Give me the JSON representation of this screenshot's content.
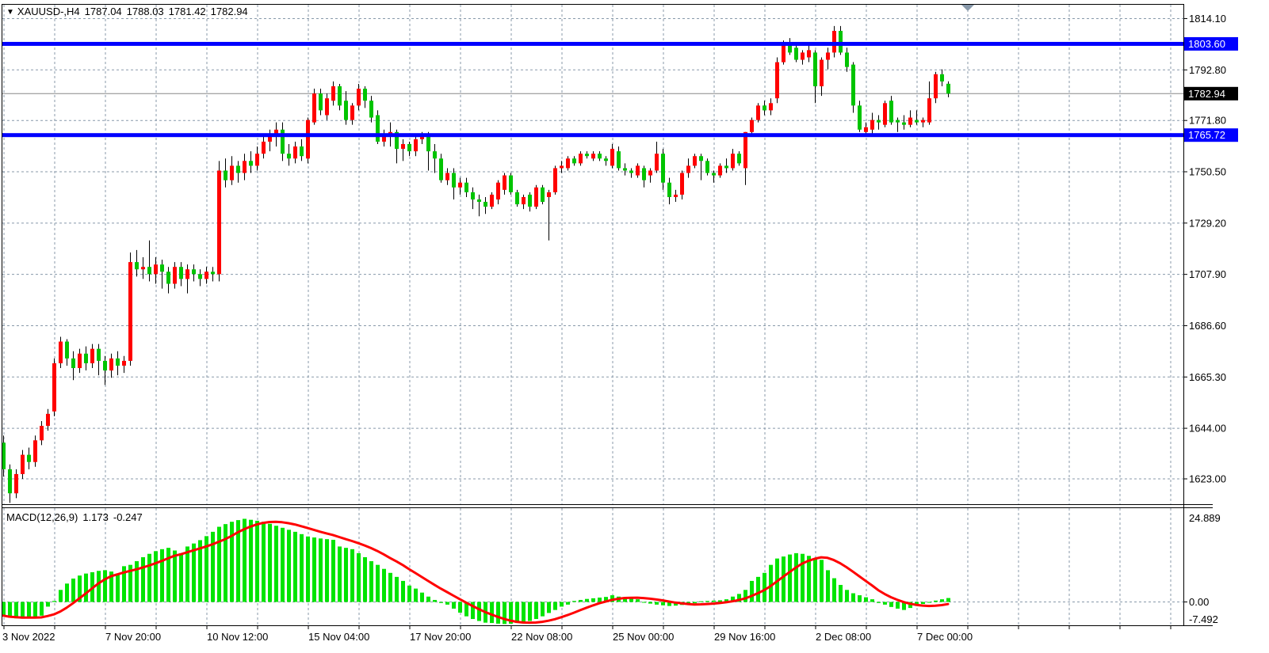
{
  "header": {
    "symbol_period": "XAUUSD-,H4",
    "open": "1787.04",
    "high": "1788.03",
    "low": "1781.42",
    "close": "1782.94"
  },
  "indicator_label": {
    "name": "MACD(12,26,9)",
    "macd_value": "1.173",
    "signal_value": "-0.247"
  },
  "price_axis": {
    "tags": [
      {
        "text": "1803.60",
        "bg": "#0000FF",
        "price": 1803.6
      },
      {
        "text": "1782.94",
        "bg": "#000000",
        "price": 1782.94
      },
      {
        "text": "1765.72",
        "bg": "#0000FF",
        "price": 1765.72
      }
    ]
  },
  "macd_axis": {
    "top": "24.889",
    "zero": "0.00",
    "bottom": "-7.492"
  },
  "colors": {
    "up": "#FF0000",
    "down": "#00C400",
    "wick": "#000000",
    "macd_bar": "#00E400",
    "signal": "#FF0000",
    "grid": "#8899AA",
    "bid_line": "#888888",
    "level_line": "#0000FF",
    "frame": "#000000",
    "marker": "#8899AA"
  },
  "chart_data": [
    {
      "type": "candlestick",
      "symbol": "XAUUSD-",
      "timeframe": "H4",
      "title": "XAUUSD-,H4 1787.04 1788.03 1781.42 1782.94",
      "ylim": [
        1612,
        1819
      ],
      "grid": true,
      "price_gridlines": [
        1814.1,
        1792.8,
        1771.8,
        1750.5,
        1729.2,
        1707.9,
        1686.6,
        1665.3,
        1644.0,
        1623.0
      ],
      "horizontal_lines": [
        {
          "price": 1803.6,
          "color": "#0000FF"
        },
        {
          "price": 1765.72,
          "color": "#0000FF"
        }
      ],
      "bid_price": 1782.94,
      "time_labels": [
        "3 Nov 2022",
        "7 Nov 20:00",
        "10 Nov 12:00",
        "15 Nov 04:00",
        "17 Nov 20:00",
        "22 Nov 08:00",
        "25 Nov 00:00",
        "29 Nov 16:00",
        "2 Dec 08:00",
        "7 Dec 00:00"
      ],
      "candles": [
        [
          1638,
          1641,
          1624,
          1627
        ],
        [
          1627,
          1629,
          1613,
          1617
        ],
        [
          1617,
          1627,
          1615,
          1625
        ],
        [
          1625,
          1635,
          1623,
          1633
        ],
        [
          1633,
          1636,
          1627,
          1630
        ],
        [
          1630,
          1641,
          1628,
          1639
        ],
        [
          1639,
          1647,
          1637,
          1645
        ],
        [
          1645,
          1652,
          1643,
          1650
        ],
        [
          1651,
          1673,
          1649,
          1671
        ],
        [
          1671,
          1682,
          1669,
          1680
        ],
        [
          1680,
          1681,
          1670,
          1673
        ],
        [
          1673,
          1676,
          1664,
          1669
        ],
        [
          1669,
          1677,
          1667,
          1675
        ],
        [
          1675,
          1678,
          1668,
          1671
        ],
        [
          1671,
          1679,
          1669,
          1677
        ],
        [
          1677,
          1679,
          1666,
          1672
        ],
        [
          1672,
          1674,
          1662,
          1668
        ],
        [
          1668,
          1675,
          1665,
          1673
        ],
        [
          1673,
          1676,
          1666,
          1670
        ],
        [
          1670,
          1674,
          1667,
          1672
        ],
        [
          1672,
          1717,
          1670,
          1713
        ],
        [
          1713,
          1718,
          1707,
          1710
        ],
        [
          1710,
          1715,
          1706,
          1711
        ],
        [
          1711,
          1722,
          1705,
          1708
        ],
        [
          1708,
          1715,
          1704,
          1712
        ],
        [
          1712,
          1714,
          1702,
          1709
        ],
        [
          1709,
          1711,
          1700,
          1704
        ],
        [
          1704,
          1713,
          1702,
          1711
        ],
        [
          1711,
          1713,
          1703,
          1706
        ],
        [
          1706,
          1712,
          1700,
          1710
        ],
        [
          1710,
          1712,
          1705,
          1708
        ],
        [
          1708,
          1710,
          1703,
          1706
        ],
        [
          1706,
          1711,
          1704,
          1709
        ],
        [
          1709,
          1711,
          1705,
          1708
        ],
        [
          1708,
          1755,
          1705,
          1751
        ],
        [
          1751,
          1756,
          1744,
          1747
        ],
        [
          1747,
          1757,
          1745,
          1753
        ],
        [
          1753,
          1755,
          1746,
          1750
        ],
        [
          1750,
          1758,
          1747,
          1755
        ],
        [
          1755,
          1759,
          1750,
          1753
        ],
        [
          1753,
          1761,
          1751,
          1758
        ],
        [
          1758,
          1766,
          1756,
          1763
        ],
        [
          1763,
          1768,
          1759,
          1765
        ],
        [
          1765,
          1771,
          1761,
          1768
        ],
        [
          1768,
          1771,
          1755,
          1758
        ],
        [
          1758,
          1762,
          1753,
          1756
        ],
        [
          1756,
          1763,
          1754,
          1761
        ],
        [
          1761,
          1764,
          1755,
          1757
        ],
        [
          1756,
          1773,
          1754,
          1772
        ],
        [
          1771,
          1785,
          1770,
          1783
        ],
        [
          1783,
          1785,
          1774,
          1776
        ],
        [
          1774,
          1783,
          1772,
          1781
        ],
        [
          1780,
          1788,
          1778,
          1786
        ],
        [
          1786,
          1787,
          1776,
          1778
        ],
        [
          1780,
          1784,
          1770,
          1772
        ],
        [
          1772,
          1779,
          1770,
          1778
        ],
        [
          1778,
          1787,
          1776,
          1785
        ],
        [
          1785,
          1786,
          1777,
          1780
        ],
        [
          1780,
          1782,
          1771,
          1773
        ],
        [
          1774,
          1776,
          1762,
          1763
        ],
        [
          1763,
          1768,
          1761,
          1766
        ],
        [
          1766,
          1771,
          1761,
          1767
        ],
        [
          1767,
          1768,
          1754,
          1760
        ],
        [
          1760,
          1764,
          1755,
          1762
        ],
        [
          1762,
          1763,
          1757,
          1759
        ],
        [
          1759,
          1765,
          1757,
          1764
        ],
        [
          1764,
          1767,
          1762,
          1766
        ],
        [
          1766,
          1767,
          1751,
          1759
        ],
        [
          1759,
          1762,
          1750,
          1756
        ],
        [
          1756,
          1758,
          1746,
          1747
        ],
        [
          1747,
          1752,
          1745,
          1750
        ],
        [
          1750,
          1752,
          1739,
          1744
        ],
        [
          1744,
          1748,
          1741,
          1746
        ],
        [
          1746,
          1748,
          1740,
          1742
        ],
        [
          1742,
          1744,
          1735,
          1739
        ],
        [
          1739,
          1741,
          1732,
          1738
        ],
        [
          1738,
          1740,
          1733,
          1736
        ],
        [
          1736,
          1742,
          1735,
          1741
        ],
        [
          1739,
          1747,
          1737,
          1746
        ],
        [
          1743,
          1750,
          1741,
          1749
        ],
        [
          1749,
          1750,
          1741,
          1742
        ],
        [
          1742,
          1743,
          1736,
          1737
        ],
        [
          1737,
          1741,
          1735,
          1740
        ],
        [
          1741,
          1742,
          1734,
          1736
        ],
        [
          1736,
          1745,
          1735,
          1744
        ],
        [
          1744,
          1745,
          1737,
          1738
        ],
        [
          1740,
          1743,
          1722,
          1742
        ],
        [
          1742,
          1753,
          1741,
          1752
        ],
        [
          1752,
          1755,
          1750,
          1753
        ],
        [
          1752,
          1757,
          1751,
          1756
        ],
        [
          1756,
          1757,
          1753,
          1754
        ],
        [
          1754,
          1759,
          1753,
          1758
        ],
        [
          1758,
          1759,
          1756,
          1757
        ],
        [
          1756,
          1759,
          1755,
          1758
        ],
        [
          1758,
          1759,
          1755,
          1756
        ],
        [
          1756,
          1757,
          1753,
          1755
        ],
        [
          1753,
          1762,
          1752,
          1760
        ],
        [
          1759,
          1761,
          1751,
          1752
        ],
        [
          1752,
          1754,
          1749,
          1751
        ],
        [
          1751,
          1752,
          1748,
          1750
        ],
        [
          1749,
          1754,
          1748,
          1753
        ],
        [
          1752,
          1753,
          1744,
          1747
        ],
        [
          1749,
          1752,
          1746,
          1751
        ],
        [
          1751,
          1763,
          1750,
          1758
        ],
        [
          1758,
          1760,
          1743,
          1746
        ],
        [
          1746,
          1748,
          1737,
          1740
        ],
        [
          1740,
          1743,
          1738,
          1741
        ],
        [
          1741,
          1751,
          1739,
          1750
        ],
        [
          1750,
          1756,
          1748,
          1753
        ],
        [
          1753,
          1758,
          1752,
          1757
        ],
        [
          1757,
          1758,
          1747,
          1755
        ],
        [
          1755,
          1756,
          1749,
          1750
        ],
        [
          1750,
          1751,
          1746,
          1749
        ],
        [
          1749,
          1754,
          1748,
          1753
        ],
        [
          1753,
          1756,
          1750,
          1752
        ],
        [
          1752,
          1760,
          1751,
          1758
        ],
        [
          1758,
          1759,
          1753,
          1754
        ],
        [
          1752,
          1767,
          1745,
          1767
        ],
        [
          1767,
          1773,
          1765,
          1772
        ],
        [
          1772,
          1779,
          1771,
          1778
        ],
        [
          1778,
          1780,
          1774,
          1776
        ],
        [
          1776,
          1781,
          1774,
          1779
        ],
        [
          1781,
          1798,
          1779,
          1796
        ],
        [
          1796,
          1805,
          1795,
          1803
        ],
        [
          1803,
          1806,
          1799,
          1800
        ],
        [
          1802,
          1804,
          1796,
          1797
        ],
        [
          1797,
          1801,
          1795,
          1800
        ],
        [
          1798,
          1804,
          1796,
          1801
        ],
        [
          1800,
          1801,
          1779,
          1786
        ],
        [
          1786,
          1798,
          1782,
          1797
        ],
        [
          1797,
          1802,
          1793,
          1800
        ],
        [
          1800,
          1811,
          1798,
          1809
        ],
        [
          1809,
          1811,
          1799,
          1800
        ],
        [
          1800,
          1802,
          1792,
          1794
        ],
        [
          1795,
          1796,
          1775,
          1778
        ],
        [
          1778,
          1780,
          1767,
          1768
        ],
        [
          1767,
          1771,
          1765,
          1769
        ],
        [
          1768,
          1775,
          1766,
          1772
        ],
        [
          1772,
          1774,
          1768,
          1771
        ],
        [
          1770,
          1780,
          1769,
          1779
        ],
        [
          1780,
          1782,
          1770,
          1771
        ],
        [
          1772,
          1773,
          1767,
          1771
        ],
        [
          1771,
          1774,
          1768,
          1770
        ],
        [
          1770,
          1776,
          1769,
          1773
        ],
        [
          1772,
          1776,
          1770,
          1771
        ],
        [
          1771,
          1773,
          1769,
          1772
        ],
        [
          1771,
          1788,
          1770,
          1781
        ],
        [
          1781,
          1792,
          1779,
          1791
        ],
        [
          1791,
          1793,
          1786,
          1788
        ],
        [
          1787.04,
          1788.03,
          1781.42,
          1782.94
        ]
      ]
    },
    {
      "type": "bar",
      "name": "MACD(12,26,9)",
      "current": {
        "macd": 1.173,
        "signal": -0.247
      },
      "signal_period": 9,
      "ylim": [
        -7.492,
        24.889
      ],
      "axis_labels": [
        "24.889",
        "0.00",
        "-7.492"
      ],
      "values": [
        -4.1,
        -4.7,
        -4.9,
        -5.0,
        -4.6,
        -4.9,
        -4.1,
        -1.4,
        0.3,
        3.6,
        5.5,
        7.0,
        7.9,
        8.5,
        8.9,
        9.3,
        9.5,
        9.1,
        8.5,
        10.7,
        11.1,
        12.2,
        13.4,
        14.4,
        15.2,
        15.8,
        16.2,
        15.4,
        14.6,
        16.6,
        17.5,
        18.5,
        19.7,
        21.0,
        22.5,
        23.3,
        24.0,
        24.5,
        24.889,
        24.6,
        24.3,
        24.0,
        23.4,
        22.8,
        22.2,
        21.6,
        21.0,
        20.3,
        19.6,
        19.3,
        19.0,
        18.8,
        18.6,
        16.6,
        16.2,
        15.8,
        14.6,
        13.4,
        12.2,
        11.1,
        9.9,
        8.7,
        7.5,
        6.3,
        4.9,
        4.0,
        2.8,
        1.6,
        0.6,
        -0.3,
        -0.8,
        -2.0,
        -3.2,
        -4.3,
        -5.1,
        -5.7,
        -6.2,
        -6.3,
        -6.5,
        -6.6,
        -6.5,
        -6.3,
        -6.2,
        -5.7,
        -5.1,
        -4.3,
        -3.3,
        -2.4,
        -1.4,
        -0.8,
        0.3,
        0.6,
        0.9,
        1.1,
        1.3,
        1.5,
        2.0,
        1.6,
        1.3,
        1.0,
        0.8,
        -0.2,
        -0.5,
        -0.8,
        -1.0,
        -1.2,
        -1.1,
        -0.9,
        -0.7,
        -0.4,
        0.2,
        0.3,
        0.4,
        0.5,
        0.8,
        1.6,
        2.4,
        3.6,
        6.3,
        7.5,
        8.7,
        11.1,
        13.0,
        13.6,
        14.2,
        14.6,
        14.4,
        13.8,
        13.0,
        12.6,
        9.5,
        7.1,
        5.1,
        3.6,
        2.6,
        2.0,
        1.4,
        0.8,
        -0.3,
        -0.8,
        -1.5,
        -2.0,
        -2.4,
        -1.8,
        -1.2,
        -0.6,
        -0.2,
        0.4,
        0.8,
        1.173
      ]
    }
  ]
}
